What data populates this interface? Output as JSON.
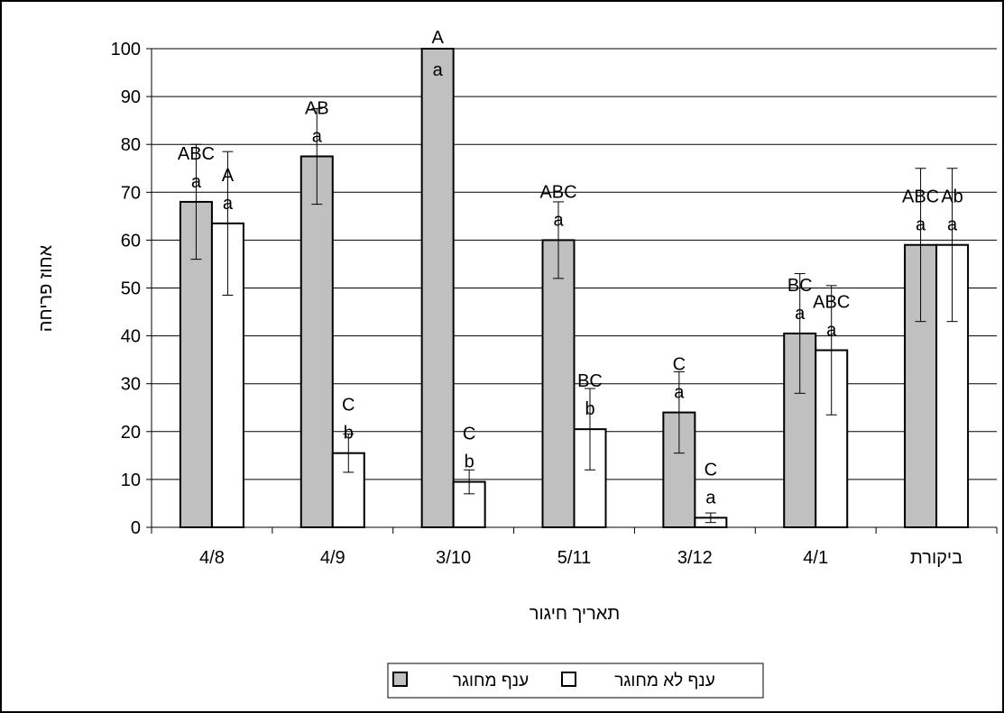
{
  "chart_data": {
    "type": "bar",
    "title": "",
    "xlabel": "תאריך חיגור",
    "ylabel": "אחוז פריחה",
    "ylim": [
      0,
      100
    ],
    "yticks": [
      0,
      10,
      20,
      30,
      40,
      50,
      60,
      70,
      80,
      90,
      100
    ],
    "grid": true,
    "legend_position": "bottom",
    "categories": [
      "4/8",
      "4/9",
      "3/10",
      "5/11",
      "3/12",
      "4/1",
      "ביקורת"
    ],
    "series": [
      {
        "name": "ענף מחוגר",
        "color": "#c0c0c0",
        "values": [
          68,
          77.5,
          100,
          60,
          24,
          40.5,
          59
        ],
        "error": [
          12,
          10,
          0,
          8,
          8.5,
          12.5,
          16
        ],
        "upper_labels": [
          "ABC",
          "AB",
          "A",
          "ABC",
          "C",
          "BC",
          "ABC"
        ],
        "lower_labels": [
          "a",
          "a",
          "a",
          "a",
          "a",
          "a",
          "a"
        ]
      },
      {
        "name": "ענף לא מחוגר",
        "color": "#ffffff",
        "values": [
          63.5,
          15.5,
          9.5,
          20.5,
          2,
          37,
          59
        ],
        "error": [
          15,
          4,
          2.5,
          8.5,
          1,
          13.5,
          16
        ],
        "upper_labels": [
          "A",
          "C",
          "C",
          "BC",
          "C",
          "ABC",
          "Ab"
        ],
        "lower_labels": [
          "a",
          "b",
          "b",
          "b",
          "a",
          "a",
          "a"
        ]
      }
    ]
  }
}
